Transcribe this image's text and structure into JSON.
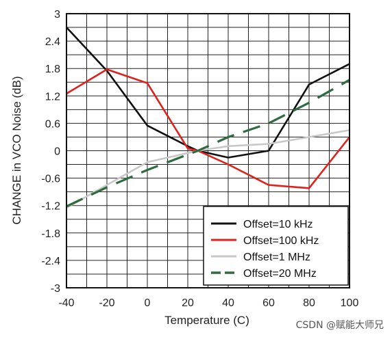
{
  "chart_data": {
    "type": "line",
    "title": "",
    "xlabel": "Temperature (C)",
    "ylabel": "CHANGE in VCO Noise (dB)",
    "xlim": [
      -40,
      100
    ],
    "ylim": [
      -3,
      3
    ],
    "xticks": [
      -40,
      -20,
      0,
      20,
      40,
      60,
      80,
      100
    ],
    "yticks": [
      3,
      2.4,
      1.8,
      1.2,
      0.6,
      0,
      -0.6,
      -1.2,
      -1.8,
      -2.4,
      -3
    ],
    "ytick_labels": [
      "3",
      "2.4",
      "1.8",
      "1.2",
      "0.6",
      "0",
      "-0.6",
      "-1.2",
      "-1.8",
      "-2.4",
      "-3"
    ],
    "xtick_labels": [
      "-40",
      "-20",
      "0",
      "20",
      "40",
      "60",
      "80",
      "100"
    ],
    "grid": true,
    "legend_position": "bottom-right",
    "series": [
      {
        "name": "Offset=10 kHz",
        "color": "#111111",
        "dash": "solid",
        "x": [
          -40,
          -20,
          0,
          20,
          25,
          40,
          60,
          80,
          100
        ],
        "y": [
          2.7,
          1.75,
          0.55,
          0.1,
          0.0,
          -0.15,
          0.0,
          1.45,
          1.9
        ]
      },
      {
        "name": "Offset=100 kHz",
        "color": "#e0201b",
        "dash": "solid",
        "x": [
          -40,
          -20,
          0,
          20,
          25,
          40,
          60,
          80,
          100
        ],
        "y": [
          1.25,
          1.78,
          1.48,
          0.05,
          0.0,
          -0.3,
          -0.75,
          -0.82,
          0.3
        ]
      },
      {
        "name": "Offset=1 MHz",
        "color": "#c8c8c8",
        "dash": "solid",
        "x": [
          -40,
          -20,
          0,
          25,
          40,
          60,
          80,
          100
        ],
        "y": [
          -1.25,
          -0.75,
          -0.25,
          0.0,
          0.1,
          0.15,
          0.3,
          0.45
        ]
      },
      {
        "name": "Offset=20 MHz",
        "color": "#2e6b3e",
        "dash": "dashed",
        "x": [
          -40,
          -20,
          0,
          25,
          40,
          60,
          80,
          100
        ],
        "y": [
          -1.22,
          -0.8,
          -0.42,
          0.0,
          0.3,
          0.6,
          1.05,
          1.55
        ]
      }
    ]
  },
  "watermark": "CSDN @赋能大师兄"
}
